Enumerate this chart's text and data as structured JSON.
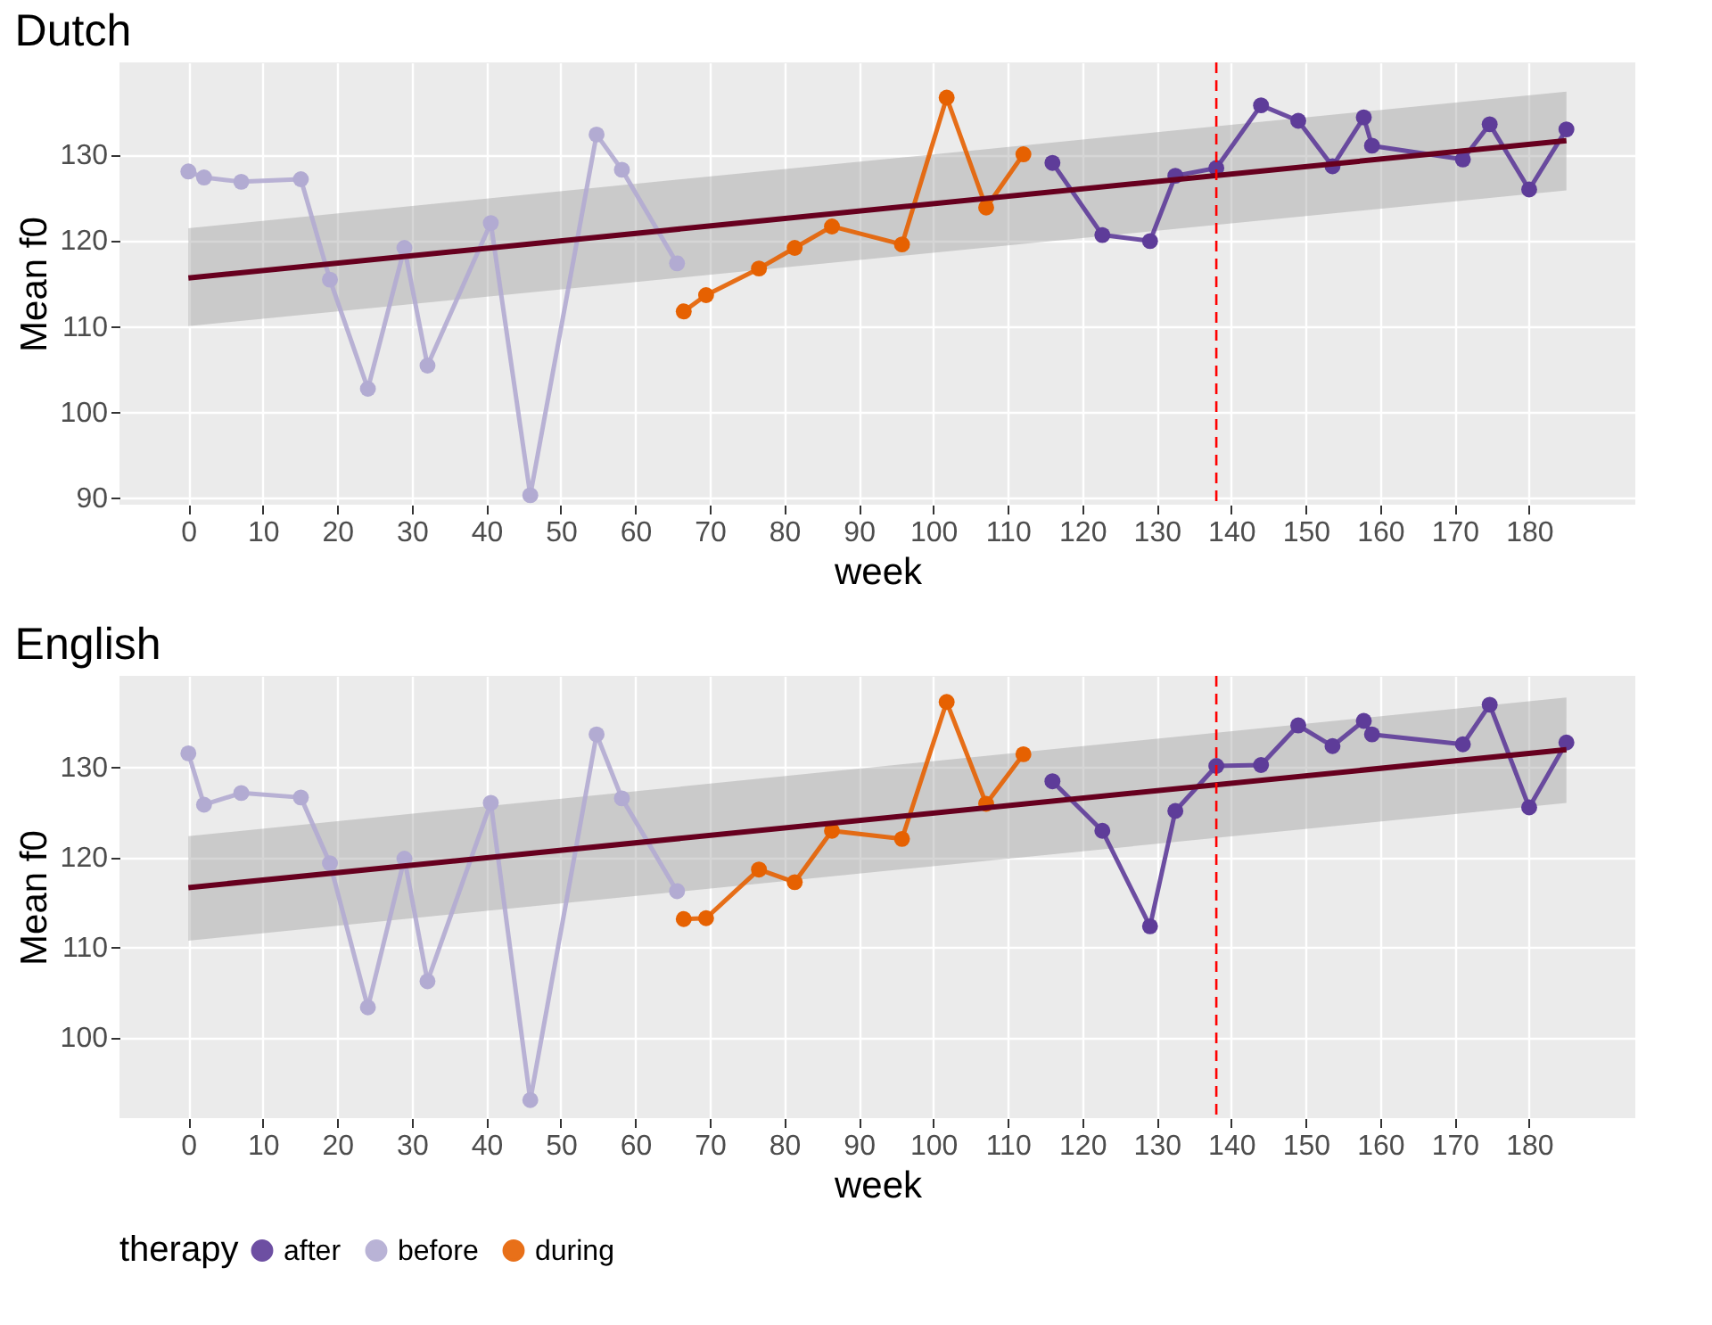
{
  "chart_data": [
    {
      "type": "line",
      "title": "Dutch",
      "xlabel": "week",
      "ylabel": "Mean f0",
      "legend_title": "therapy",
      "legend": "bottom",
      "grid": true,
      "marker": "circle",
      "xlim": [
        -9.25,
        194.25
      ],
      "xticks": [
        0,
        10,
        20,
        30,
        40,
        50,
        60,
        70,
        80,
        90,
        100,
        110,
        120,
        130,
        140,
        150,
        160,
        170,
        180
      ],
      "ylim": [
        89.2,
        140.7
      ],
      "yticks": [
        90,
        100,
        110,
        120,
        130
      ],
      "series": [
        {
          "name": "after",
          "color": "#5e3c99",
          "x": [
            116.0,
            122.7,
            129.1,
            132.5,
            138.0,
            144.0,
            149.0,
            153.6,
            157.8,
            158.9,
            171.1,
            174.7,
            180.0,
            185.0
          ],
          "values": [
            129.0,
            120.6,
            119.9,
            127.5,
            128.4,
            135.7,
            133.9,
            128.6,
            134.3,
            131.0,
            129.4,
            133.5,
            125.9,
            132.9
          ]
        },
        {
          "name": "before",
          "color": "#b2abd2",
          "x": [
            0,
            2.1,
            7.1,
            15.1,
            19.0,
            24.1,
            29.0,
            32.1,
            40.6,
            45.9,
            54.8,
            58.2,
            65.6
          ],
          "values": [
            128.0,
            127.3,
            126.8,
            127.1,
            115.4,
            102.7,
            119.1,
            105.4,
            122.0,
            90.3,
            132.3,
            128.2,
            117.3
          ]
        },
        {
          "name": "during",
          "color": "#e66101",
          "x": [
            66.5,
            69.5,
            76.6,
            81.4,
            86.4,
            95.8,
            101.8,
            107.1,
            112.1
          ],
          "values": [
            111.7,
            113.6,
            116.7,
            119.1,
            121.6,
            119.5,
            136.6,
            123.8,
            130.0
          ]
        },
        {
          "type": "line",
          "color": "#67001f",
          "marker": "none",
          "x": [
            0,
            185
          ],
          "values": [
            115.6,
            131.6
          ],
          "lower": [
            110.0,
            125.8
          ],
          "upper": [
            121.4,
            137.3
          ]
        }
      ],
      "ref_lines": [
        {
          "axis": "x",
          "value": 138.0,
          "color": "#ff0000",
          "line_style": "dashed"
        }
      ]
    },
    {
      "type": "line",
      "title": "English",
      "xlabel": "week",
      "ylabel": "Mean f0",
      "grid": true,
      "marker": "circle",
      "xlim": [
        -9.25,
        194.25
      ],
      "xticks": [
        0,
        10,
        20,
        30,
        40,
        50,
        60,
        70,
        80,
        90,
        100,
        110,
        120,
        130,
        140,
        150,
        160,
        170,
        180
      ],
      "ylim": [
        91.0,
        140.1
      ],
      "yticks": [
        100,
        110,
        120,
        130
      ],
      "series": [
        {
          "name": "after",
          "color": "#5e3c99",
          "x": [
            116.0,
            122.7,
            129.1,
            132.5,
            138.0,
            144.0,
            149.0,
            153.6,
            157.8,
            158.9,
            171.1,
            174.7,
            180.0,
            185.0
          ],
          "values": [
            128.4,
            122.9,
            112.3,
            125.1,
            130.1,
            130.2,
            134.6,
            132.3,
            135.1,
            133.6,
            132.5,
            136.9,
            125.5,
            132.7
          ]
        },
        {
          "name": "before",
          "color": "#b2abd2",
          "x": [
            0,
            2.1,
            7.1,
            15.1,
            19.0,
            24.1,
            29.0,
            32.1,
            40.6,
            45.9,
            54.8,
            58.2,
            65.6
          ],
          "values": [
            131.5,
            125.8,
            127.1,
            126.6,
            119.3,
            103.3,
            119.8,
            106.2,
            126.0,
            93.0,
            133.6,
            126.5,
            116.2
          ]
        },
        {
          "name": "during",
          "color": "#e66101",
          "x": [
            66.5,
            69.5,
            76.6,
            81.4,
            86.4,
            95.8,
            101.8,
            107.1,
            112.1
          ],
          "values": [
            113.1,
            113.2,
            118.6,
            117.2,
            122.9,
            122.0,
            137.2,
            125.9,
            131.4
          ]
        },
        {
          "type": "line",
          "color": "#67001f",
          "marker": "none",
          "x": [
            0,
            185
          ],
          "values": [
            116.6,
            131.9
          ],
          "lower": [
            110.7,
            126.0
          ],
          "upper": [
            122.3,
            137.7
          ]
        }
      ],
      "ref_lines": [
        {
          "axis": "x",
          "value": 138.0,
          "color": "#ff0000",
          "line_style": "dashed"
        }
      ]
    }
  ]
}
